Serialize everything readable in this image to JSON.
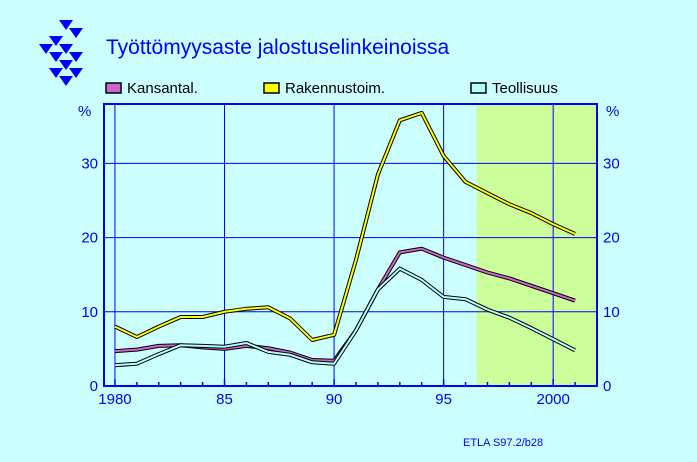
{
  "chart_data": {
    "type": "line",
    "title": "Työttömyysaste  jalostuselinkeinoissa",
    "ylabel_left": "%",
    "ylabel_right": "%",
    "source": "ETLA S97.2/b28",
    "xlim": [
      1979.5,
      2002
    ],
    "ylim": [
      0,
      38
    ],
    "x_ticks": [
      1980,
      1985,
      1990,
      1995,
      2000
    ],
    "x_tick_labels": [
      "1980",
      "85",
      "90",
      "95",
      "2000"
    ],
    "y_ticks": [
      0,
      10,
      20,
      30
    ],
    "y_tick_labels": [
      "0",
      "10",
      "20",
      "30"
    ],
    "grid": true,
    "forecast_region": {
      "from": 1996.5,
      "to": 2002,
      "color": "#ccff99"
    },
    "x": [
      1980,
      1981,
      1982,
      1983,
      1984,
      1985,
      1986,
      1987,
      1988,
      1989,
      1990,
      1991,
      1992,
      1993,
      1994,
      1995,
      1996,
      1997,
      1998,
      1999,
      2000,
      2001
    ],
    "series": [
      {
        "name": "Kansantal.",
        "color": "#cc66cc",
        "values": [
          4.7,
          4.9,
          5.4,
          5.5,
          5.2,
          5.0,
          5.4,
          5.1,
          4.5,
          3.5,
          3.4,
          7.5,
          13.0,
          18.0,
          18.5,
          17.3,
          16.3,
          15.3,
          14.5,
          13.5,
          12.5,
          11.5
        ]
      },
      {
        "name": "Rakennustoim.",
        "color": "#ffff00",
        "values": [
          8.0,
          6.6,
          8.0,
          9.3,
          9.3,
          10.0,
          10.4,
          10.6,
          9.1,
          6.2,
          6.9,
          17.0,
          28.5,
          35.8,
          36.8,
          31.0,
          27.5,
          26.0,
          24.5,
          23.3,
          21.8,
          20.5
        ]
      },
      {
        "name": "Teollisuus",
        "color": "#b3ffff",
        "values": [
          2.8,
          3.0,
          4.3,
          5.5,
          5.4,
          5.3,
          5.8,
          4.6,
          4.2,
          3.2,
          3.0,
          7.5,
          13.0,
          15.8,
          14.3,
          12.0,
          11.7,
          10.3,
          9.2,
          7.8,
          6.3,
          4.8
        ]
      }
    ],
    "legend": "top, above plot area"
  }
}
